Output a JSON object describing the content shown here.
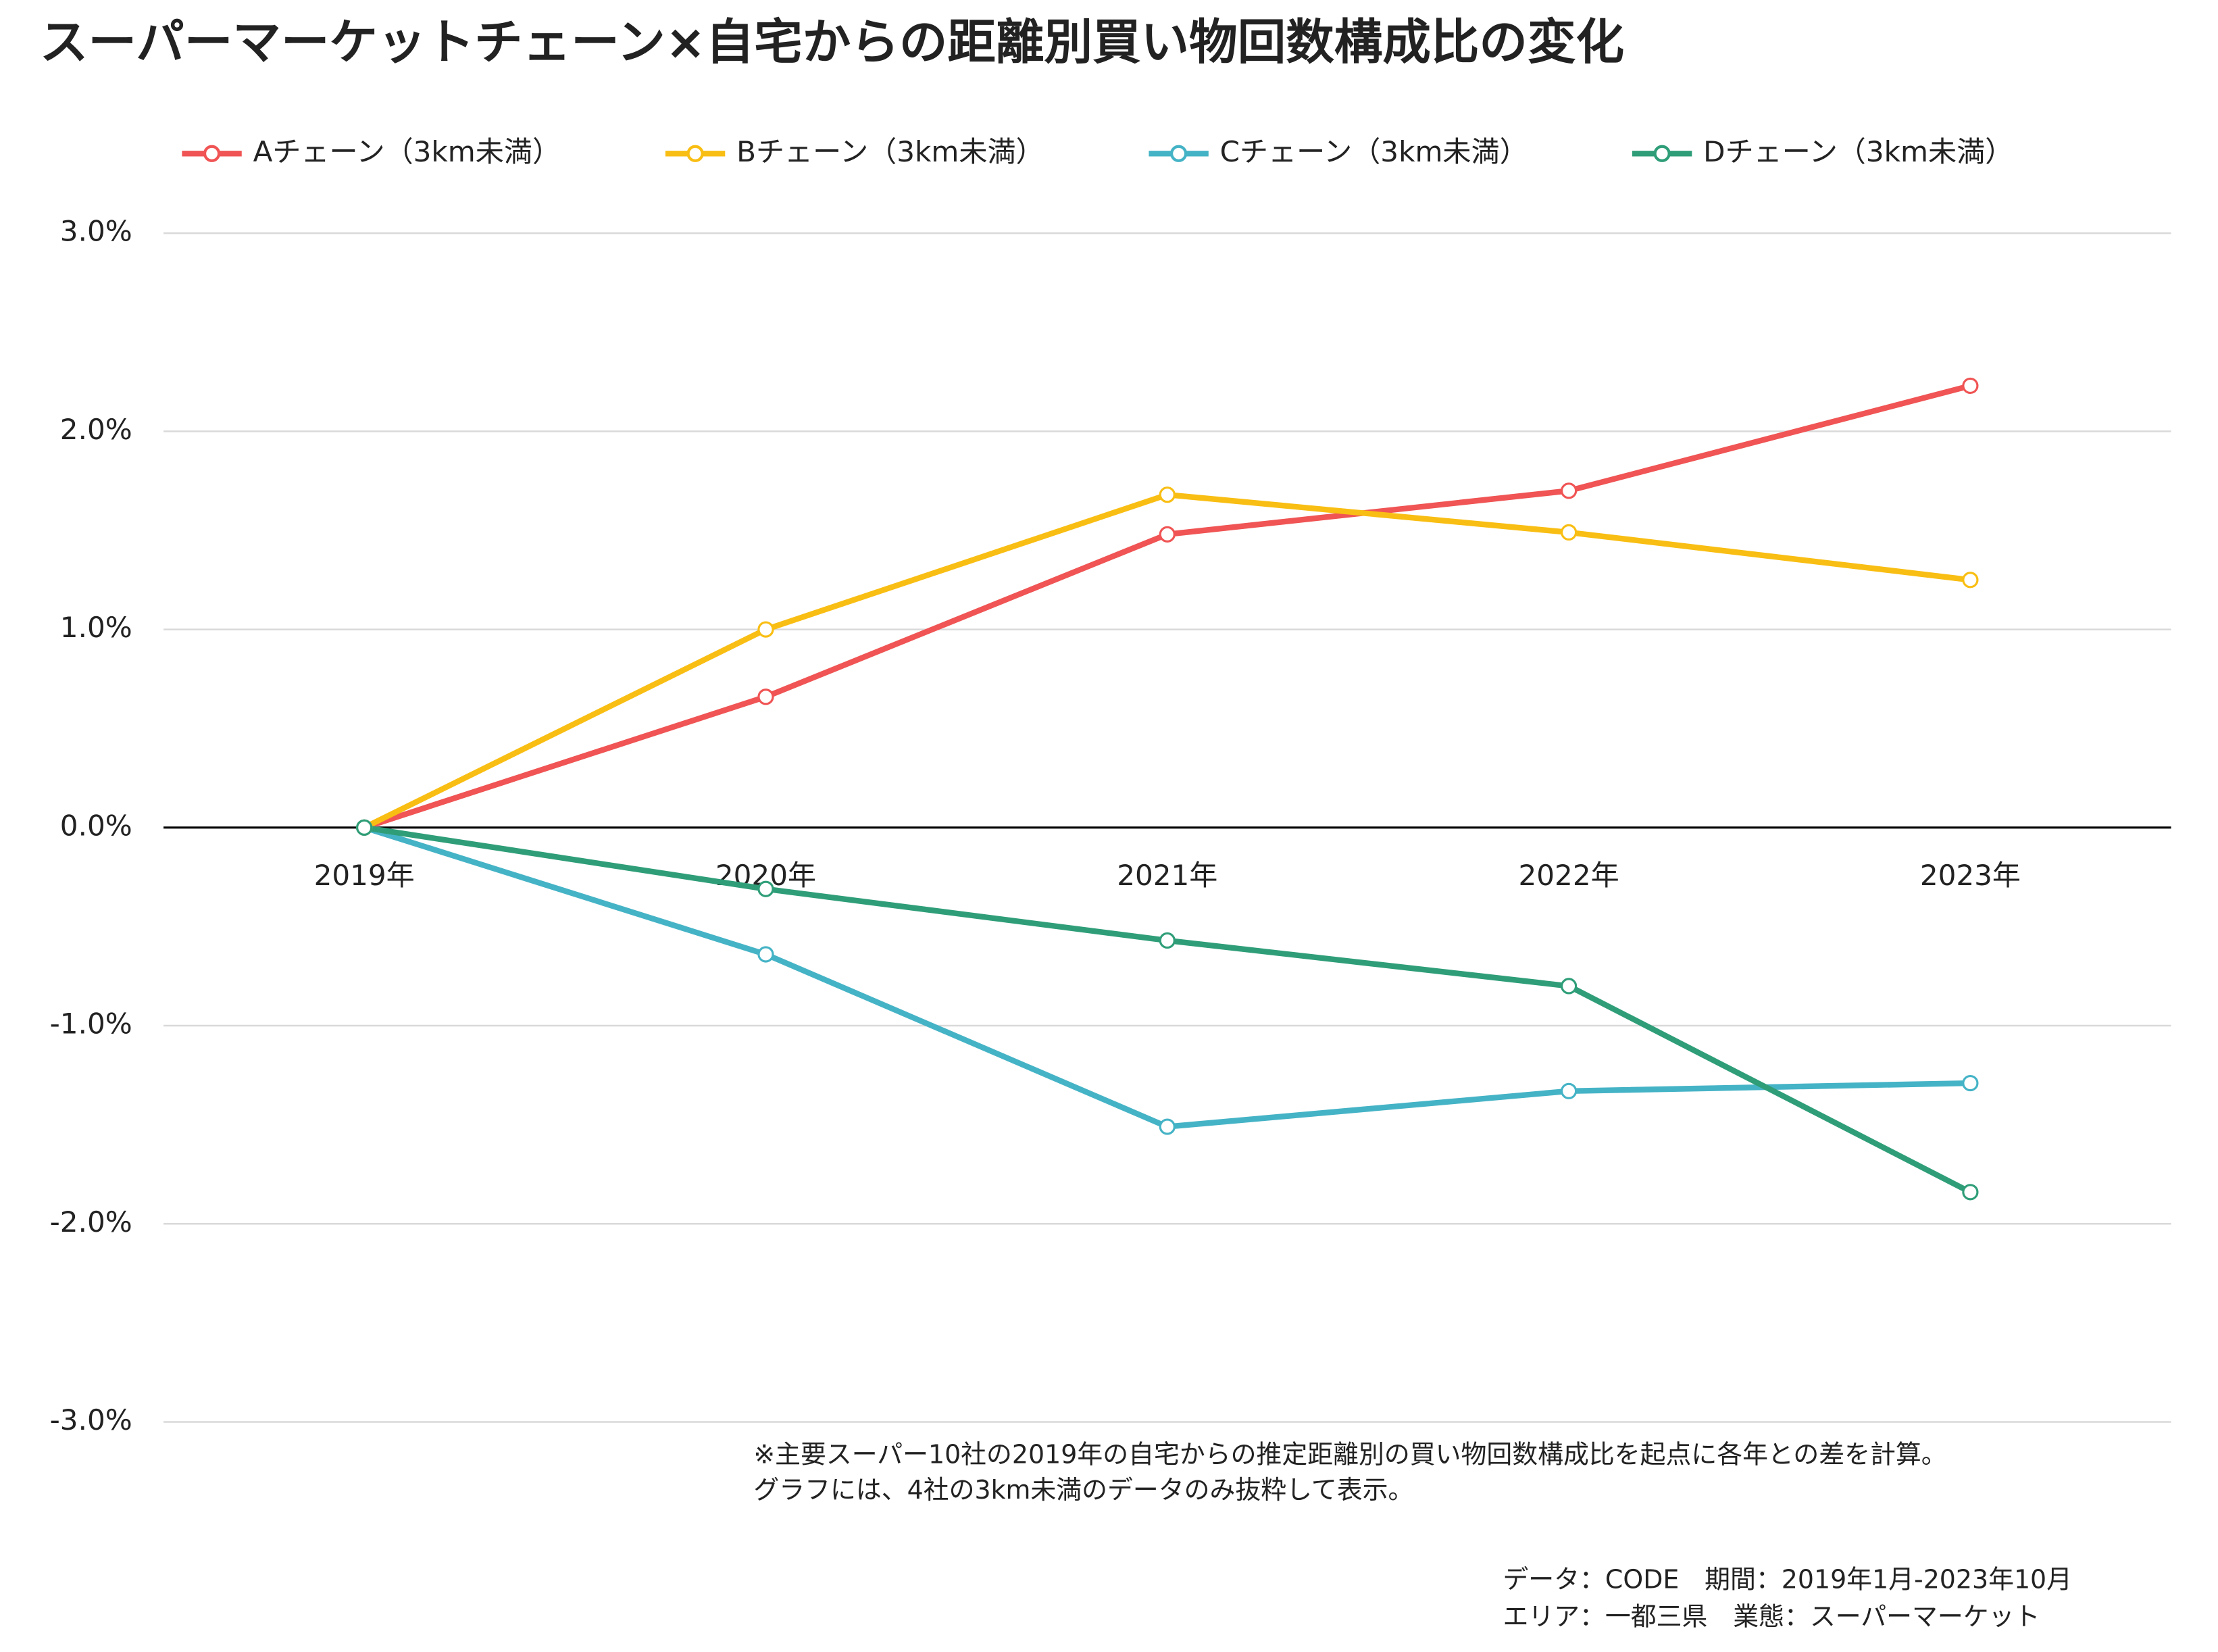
{
  "chart_data": {
    "type": "line",
    "title": "スーパーマーケットチェーン×自宅からの距離別買い物回数構成比の変化",
    "categories": [
      "2019年",
      "2020年",
      "2021年",
      "2022年",
      "2023年"
    ],
    "series": [
      {
        "name": "Aチェーン（3km未満）",
        "color": "#f05454",
        "values": [
          0,
          0.66,
          1.48,
          1.7,
          2.23
        ]
      },
      {
        "name": "Bチェーン（3km未満）",
        "color": "#f9be13",
        "values": [
          0,
          1.0,
          1.68,
          1.49,
          1.25
        ]
      },
      {
        "name": "Cチェーン（3km未満）",
        "color": "#45b3c6",
        "values": [
          0,
          -0.64,
          -1.51,
          -1.33,
          -1.29
        ]
      },
      {
        "name": "Dチェーン（3km未満）",
        "color": "#2f9e78",
        "values": [
          0,
          -0.31,
          -0.57,
          -0.8,
          -1.84
        ]
      }
    ],
    "ylim": [
      -3,
      3
    ],
    "yticks": [
      {
        "value": -3,
        "label": "-3.0%"
      },
      {
        "value": -2,
        "label": "-2.0%"
      },
      {
        "value": -1,
        "label": "-1.0%"
      },
      {
        "value": 0,
        "label": "0.0%"
      },
      {
        "value": 1,
        "label": "1.0%"
      },
      {
        "value": 2,
        "label": "2.0%"
      },
      {
        "value": 3,
        "label": "3.0%"
      }
    ],
    "grid": true,
    "legend": "top",
    "notes": [
      "※主要スーパー10社の2019年の自宅からの推定距離別の買い物回数構成比を起点に各年との差を計算。",
      "グラフには、4社の3km未満のデータのみ抜粋して表示。"
    ],
    "source": [
      "データ：CODE　期間：2019年1月-2023年10月",
      "エリア：一都三県　業態：スーパーマーケット"
    ]
  }
}
